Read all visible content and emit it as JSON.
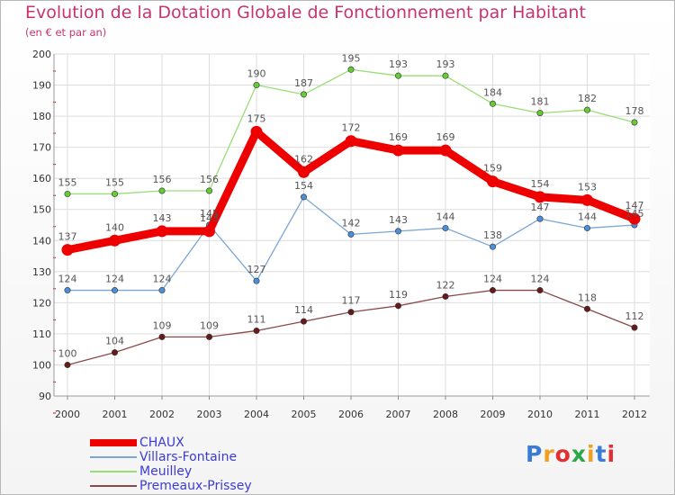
{
  "header": {
    "title": "Evolution de la Dotation Globale de Fonctionnement par Habitant",
    "subtitle": "(en € et par an)"
  },
  "logo": {
    "text": "Proxiti",
    "colors": [
      "#3a7bd5",
      "#f0a020",
      "#e03030",
      "#2aa84a",
      "#f0a020",
      "#3a7bd5",
      "#e03030"
    ]
  },
  "chart_data": {
    "type": "line",
    "title": "Evolution de la Dotation Globale de Fonctionnement par Habitant",
    "subtitle": "(en € et par an)",
    "xlabel": "",
    "ylabel": "",
    "x": [
      "2000",
      "2001",
      "2002",
      "2003",
      "2004",
      "2005",
      "2006",
      "2007",
      "2008",
      "2009",
      "2010",
      "2011",
      "2012"
    ],
    "ylim": [
      90,
      200
    ],
    "yticks": [
      90,
      100,
      110,
      120,
      130,
      140,
      150,
      160,
      170,
      180,
      190,
      200
    ],
    "grid": true,
    "legend_position": "bottom-left",
    "series": [
      {
        "name": "CHAUX",
        "color": "#ee0000",
        "line_color": "#ee0000",
        "emphasis": true,
        "values": [
          137,
          140,
          143,
          143,
          175,
          162,
          172,
          169,
          169,
          159,
          154,
          153,
          147
        ]
      },
      {
        "name": "Villars-Fontaine",
        "color": "#4a8fd8",
        "line_color": "#7aa6d4",
        "emphasis": false,
        "values": [
          124,
          124,
          124,
          145,
          127,
          154,
          142,
          143,
          144,
          138,
          147,
          144,
          145
        ]
      },
      {
        "name": "Meuilley",
        "color": "#66cc33",
        "line_color": "#99dd77",
        "emphasis": false,
        "values": [
          155,
          155,
          156,
          156,
          190,
          187,
          195,
          193,
          193,
          184,
          181,
          182,
          178
        ]
      },
      {
        "name": "Premeaux-Prissey",
        "color": "#661a1a",
        "line_color": "#8a4a4a",
        "emphasis": false,
        "values": [
          100,
          104,
          109,
          109,
          111,
          114,
          117,
          119,
          122,
          124,
          124,
          118,
          112
        ]
      }
    ]
  }
}
